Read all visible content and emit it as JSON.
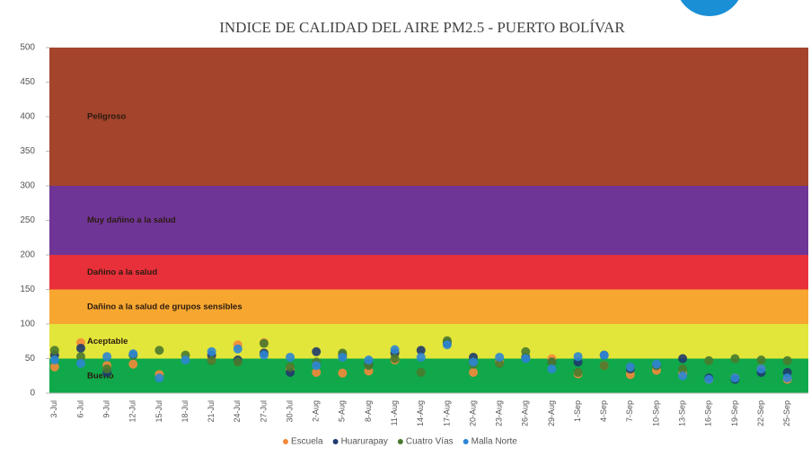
{
  "chart_data": {
    "type": "scatter",
    "title": "INDICE DE CALIDAD DEL AIRE PM2.5 - PUERTO BOLÍVAR",
    "categories": [
      "3-Jul",
      "6-Jul",
      "9-Jul",
      "12-Jul",
      "15-Jul",
      "18-Jul",
      "21-Jul",
      "24-Jul",
      "27-Jul",
      "30-Jul",
      "2-Aug",
      "5-Aug",
      "8-Aug",
      "11-Aug",
      "14-Aug",
      "17-Aug",
      "20-Aug",
      "23-Aug",
      "26-Aug",
      "29-Aug",
      "1-Sep",
      "4-Sep",
      "7-Sep",
      "10-Sep",
      "13-Sep",
      "16-Sep",
      "19-Sep",
      "22-Sep",
      "25-Sep"
    ],
    "series": [
      {
        "name": "Escuela",
        "color": "#f4883a",
        "values": [
          38,
          73,
          40,
          42,
          27,
          null,
          50,
          70,
          73,
          35,
          30,
          29,
          32,
          48,
          null,
          72,
          30,
          45,
          null,
          50,
          28,
          40,
          27,
          33,
          28,
          20,
          22,
          35,
          20
        ]
      },
      {
        "name": "Huarurapay",
        "color": "#1f3a6e",
        "values": [
          55,
          65,
          30,
          55,
          null,
          null,
          55,
          48,
          58,
          30,
          60,
          55,
          42,
          58,
          62,
          73,
          52,
          null,
          52,
          45,
          45,
          55,
          35,
          40,
          50,
          22,
          20,
          30,
          30
        ]
      },
      {
        "name": "Cuatro Vías",
        "color": "#4a7a2e",
        "values": [
          62,
          53,
          35,
          55,
          62,
          55,
          47,
          45,
          72,
          38,
          45,
          58,
          40,
          50,
          30,
          76,
          42,
          43,
          60,
          45,
          30,
          40,
          38,
          40,
          35,
          47,
          50,
          48,
          47
        ]
      },
      {
        "name": "Malla Norte",
        "color": "#2e86d4",
        "values": [
          48,
          43,
          53,
          57,
          22,
          48,
          60,
          64,
          55,
          52,
          40,
          52,
          48,
          63,
          52,
          70,
          45,
          52,
          50,
          35,
          53,
          55,
          38,
          42,
          25,
          20,
          22,
          35,
          22
        ]
      }
    ],
    "bands": [
      {
        "label": "Bueno",
        "from": 0,
        "to": 50,
        "color": "#10a84a"
      },
      {
        "label": "Aceptable",
        "from": 50,
        "to": 100,
        "color": "#e2e63a"
      },
      {
        "label": "Dañino a la salud de grupos sensibles",
        "from": 100,
        "to": 150,
        "color": "#f7a730"
      },
      {
        "label": "Dañino a la salud",
        "from": 150,
        "to": 200,
        "color": "#e8303a"
      },
      {
        "label": "Muy dañino a la salud",
        "from": 200,
        "to": 300,
        "color": "#6f3596"
      },
      {
        "label": "Peligroso",
        "from": 300,
        "to": 500,
        "color": "#a4442c"
      }
    ],
    "ylim": [
      0,
      500
    ],
    "yticks": [
      0,
      50,
      100,
      150,
      200,
      250,
      300,
      350,
      400,
      450,
      500
    ],
    "grid": false,
    "legend": "bottom"
  }
}
